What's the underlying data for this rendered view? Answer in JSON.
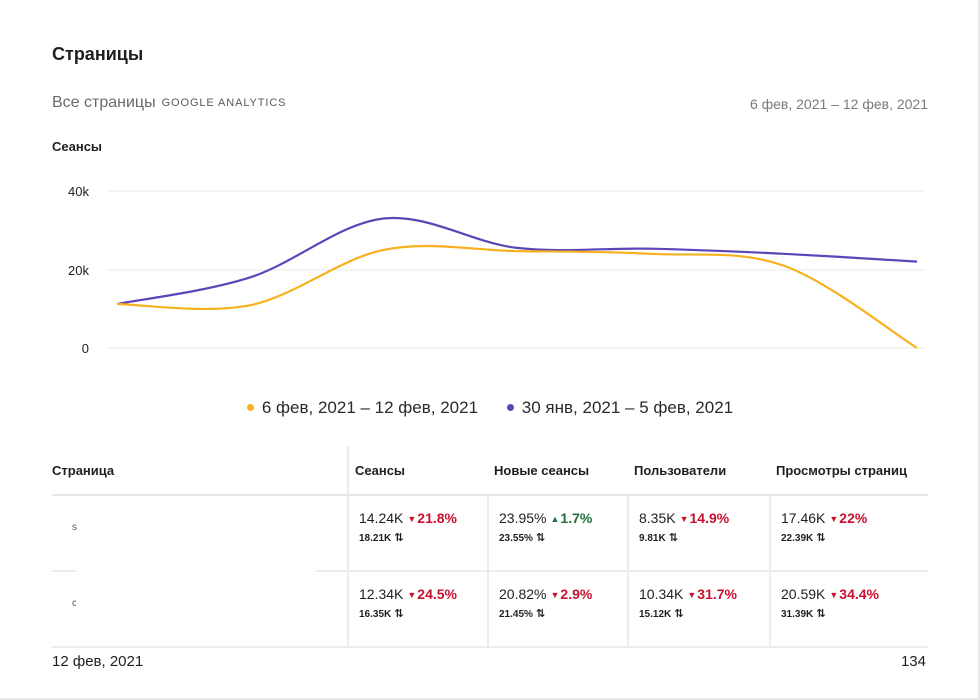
{
  "header": {
    "title": "Страницы",
    "subtitle": "Все страницы",
    "source": "GOOGLE ANALYTICS",
    "date_range": "6 фев, 2021 – 12 фев, 2021"
  },
  "metric_label": "Сеансы",
  "colors": {
    "current": "#f7b01e",
    "previous": "#5b45b8"
  },
  "chart_data": {
    "type": "line",
    "yticks": [
      "40k",
      "20k",
      "0"
    ],
    "ylim": [
      0,
      40000
    ],
    "grid": true,
    "legend": "bottom-center",
    "series": [
      {
        "name": "6 фев, 2021 – 12 фев, 2021",
        "color": "#f7b01e",
        "values": [
          11200,
          10900,
          25000,
          24700,
          24000,
          21000,
          0
        ]
      },
      {
        "name": "30 янв, 2021 – 5 фев, 2021",
        "color": "#5b45b8",
        "values": [
          11200,
          18000,
          33000,
          25500,
          25300,
          24000,
          22000
        ]
      }
    ]
  },
  "table": {
    "headers": [
      "Страница",
      "Сеансы",
      "Новые сеансы",
      "Пользователи",
      "Просмотры страниц"
    ],
    "rows": [
      {
        "initial": "s",
        "cells": [
          {
            "value": "14.24K",
            "change": "21.8%",
            "dir": "down",
            "prev": "18.21K"
          },
          {
            "value": "23.95%",
            "change": "1.7%",
            "dir": "up",
            "prev": "23.55%"
          },
          {
            "value": "8.35K",
            "change": "14.9%",
            "dir": "down",
            "prev": "9.81K"
          },
          {
            "value": "17.46K",
            "change": "22%",
            "dir": "down",
            "prev": "22.39K"
          }
        ]
      },
      {
        "initial": "c",
        "cells": [
          {
            "value": "12.34K",
            "change": "24.5%",
            "dir": "down",
            "prev": "16.35K"
          },
          {
            "value": "20.82%",
            "change": "2.9%",
            "dir": "down",
            "prev": "21.45%"
          },
          {
            "value": "10.34K",
            "change": "31.7%",
            "dir": "down",
            "prev": "15.12K"
          },
          {
            "value": "20.59K",
            "change": "34.4%",
            "dir": "down",
            "prev": "31.39K"
          }
        ]
      }
    ]
  },
  "footer": {
    "date": "12 фев, 2021",
    "page_number": "134"
  }
}
